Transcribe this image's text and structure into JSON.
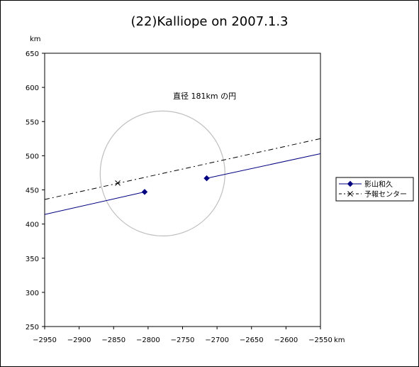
{
  "chart_data": {
    "type": "line",
    "title": "(22)Kalliope on 2007.1.3",
    "xlabel": "km",
    "ylabel": "km",
    "xlim": [
      -2950,
      -2550
    ],
    "ylim": [
      250,
      650
    ],
    "x_ticks": [
      -2950,
      -2900,
      -2850,
      -2800,
      -2750,
      -2700,
      -2650,
      -2600,
      -2550
    ],
    "y_ticks": [
      250,
      300,
      350,
      400,
      450,
      500,
      550,
      600,
      650
    ],
    "grid": false,
    "legend_position": "right",
    "annotation": "直径 181km の円",
    "circle": {
      "center": [
        -2779,
        474
      ],
      "diameter": 181
    },
    "series": [
      {
        "name": "影山和久",
        "color": "#000080",
        "style": "solid",
        "marker": "diamond",
        "segments": [
          {
            "points": [
              [
                -2950,
                414
              ],
              [
                -2805,
                447
              ]
            ],
            "marker_at": [
              -2805,
              447
            ]
          },
          {
            "points": [
              [
                -2715,
                467
              ],
              [
                -2550,
                503
              ]
            ],
            "marker_at": [
              -2715,
              467
            ]
          }
        ]
      },
      {
        "name": "予報センター",
        "color": "#000000",
        "style": "dashdot",
        "marker": "x",
        "segments": [
          {
            "points": [
              [
                -2950,
                436
              ],
              [
                -2550,
                525
              ]
            ],
            "marker_at": [
              -2844,
              460
            ]
          }
        ]
      }
    ]
  }
}
